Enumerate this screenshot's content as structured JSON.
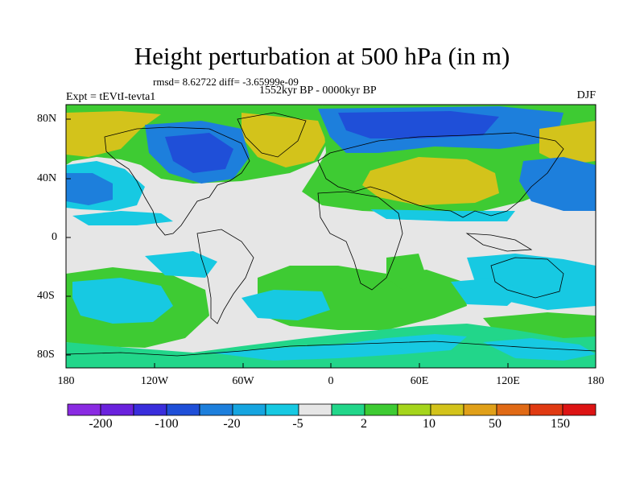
{
  "header": {
    "title": "Height perturbation at 500 hPa (in m)",
    "stats": "rmsd= 8.62722 diff= -3.65999e-09",
    "period": "1552kyr BP - 0000kyr BP",
    "experiment": "Expt = tEVtI-tevta1",
    "season": "DJF"
  },
  "axes": {
    "y_labels": [
      "80N",
      "40N",
      "0",
      "40S",
      "80S"
    ],
    "x_labels": [
      "180",
      "120W",
      "60W",
      "0",
      "60E",
      "120E",
      "180"
    ]
  },
  "colorbar": {
    "labels": [
      "-200",
      "-100",
      "-20",
      "-5",
      "2",
      "10",
      "50",
      "150"
    ],
    "colors": [
      "#8a2be2",
      "#6a22dd",
      "#3a2edc",
      "#1f4fd8",
      "#1d7fdc",
      "#16a5e0",
      "#17c9e2",
      "#e6e6e6",
      "#22d68a",
      "#3ecb33",
      "#a5d51c",
      "#d3c31b",
      "#e0a019",
      "#e06a16",
      "#e03a12",
      "#dd1414"
    ]
  }
}
